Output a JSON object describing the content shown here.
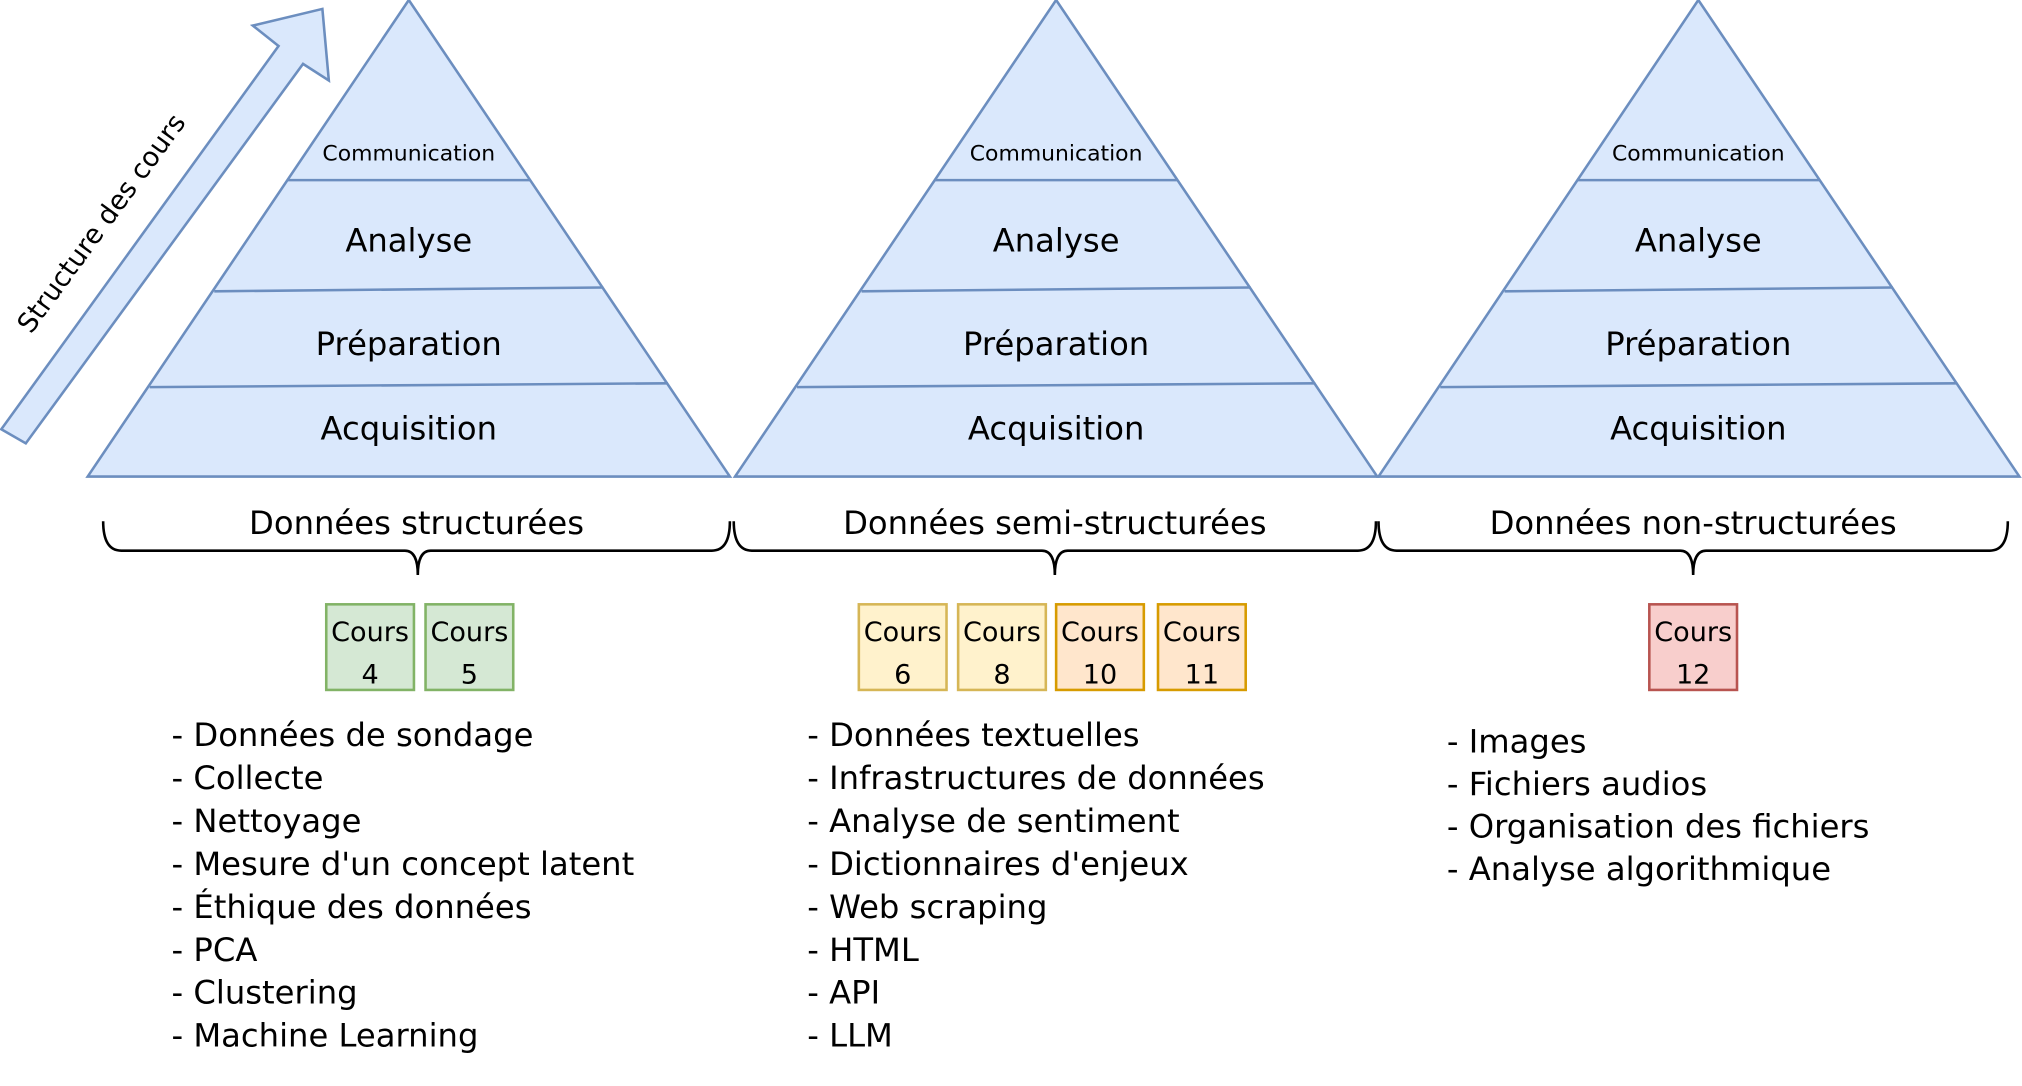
{
  "arrow_label": "Structure des cours",
  "pyramid_layers": [
    "Communication",
    "Analyse",
    "Préparation",
    "Acquisition"
  ],
  "colors": {
    "pyramid_fill": "#dae8fc",
    "pyramid_stroke": "#6c8ebf",
    "green_fill": "#d5e8d4",
    "green_stroke": "#82b366",
    "yellow_fill": "#fff2cc",
    "yellow_stroke": "#d6b656",
    "orange_fill": "#ffe6cc",
    "orange_stroke": "#d79b00",
    "red_fill": "#f8cecc",
    "red_stroke": "#b85450"
  },
  "columns": [
    {
      "category": "Données structurées",
      "courses": [
        {
          "label": "Cours",
          "number": "4",
          "color": "green"
        },
        {
          "label": "Cours",
          "number": "5",
          "color": "green"
        }
      ],
      "topics": [
        "- Données de sondage",
        "- Collecte",
        "- Nettoyage",
        "- Mesure d'un concept latent",
        "- Éthique des données",
        "- PCA",
        "- Clustering",
        "- Machine Learning"
      ]
    },
    {
      "category": "Données semi-structurées",
      "courses": [
        {
          "label": "Cours",
          "number": "6",
          "color": "yellow"
        },
        {
          "label": "Cours",
          "number": "8",
          "color": "yellow"
        },
        {
          "label": "Cours",
          "number": "10",
          "color": "orange"
        },
        {
          "label": "Cours",
          "number": "11",
          "color": "orange"
        }
      ],
      "topics": [
        "- Données textuelles",
        "- Infrastructures de données",
        "- Analyse de sentiment",
        "- Dictionnaires d'enjeux",
        "- Web scraping",
        "- HTML",
        "- API",
        "- LLM"
      ]
    },
    {
      "category": "Données non-structurées",
      "courses": [
        {
          "label": "Cours",
          "number": "12",
          "color": "red"
        }
      ],
      "topics": [
        "- Images",
        "- Fichiers audios",
        "- Organisation des fichiers",
        "- Analyse algorithmique"
      ]
    }
  ]
}
